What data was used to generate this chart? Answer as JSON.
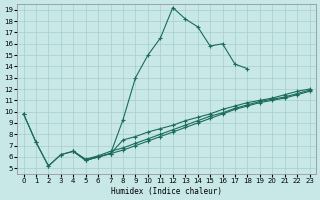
{
  "xlabel": "Humidex (Indice chaleur)",
  "bg_color": "#c8e8e8",
  "grid_color": "#a8cccc",
  "line_color": "#1a6b5a",
  "xlim": [
    -0.5,
    23.5
  ],
  "ylim": [
    4.5,
    19.5
  ],
  "xticks": [
    0,
    1,
    2,
    3,
    4,
    5,
    6,
    7,
    8,
    9,
    10,
    11,
    12,
    13,
    14,
    15,
    16,
    17,
    18,
    19,
    20,
    21,
    22,
    23
  ],
  "yticks": [
    5,
    6,
    7,
    8,
    9,
    10,
    11,
    12,
    13,
    14,
    15,
    16,
    17,
    18,
    19
  ],
  "line1_x": [
    0,
    1,
    2,
    3,
    4,
    5,
    6,
    7,
    8,
    9,
    10,
    11,
    12,
    13,
    14,
    15,
    16,
    17,
    18
  ],
  "line1_y": [
    9.8,
    7.3,
    5.2,
    6.2,
    6.5,
    5.7,
    6.0,
    6.3,
    9.3,
    13.0,
    15.0,
    16.5,
    19.2,
    18.2,
    17.5,
    15.8,
    16.0,
    14.2,
    13.8
  ],
  "line2_x": [
    0,
    1,
    2,
    3,
    4,
    5,
    6,
    7,
    8,
    9,
    10,
    11,
    12,
    13,
    14,
    15,
    16,
    17,
    18,
    19,
    20,
    21,
    22,
    23
  ],
  "line2_y": [
    9.8,
    7.3,
    5.2,
    6.2,
    6.5,
    5.7,
    6.0,
    6.3,
    7.5,
    7.8,
    8.2,
    8.5,
    8.8,
    9.2,
    9.5,
    9.8,
    10.2,
    10.5,
    10.8,
    11.0,
    11.2,
    11.5,
    11.8,
    12.0
  ],
  "line3_x": [
    4,
    5,
    6,
    7,
    8,
    9,
    10,
    11,
    12,
    13,
    14,
    15,
    16,
    17,
    18,
    19,
    20,
    21,
    22,
    23
  ],
  "line3_y": [
    6.5,
    5.7,
    6.0,
    6.3,
    6.6,
    7.0,
    7.4,
    7.8,
    8.2,
    8.6,
    9.0,
    9.4,
    9.8,
    10.2,
    10.5,
    10.8,
    11.0,
    11.2,
    11.5,
    11.8
  ],
  "line4_x": [
    4,
    5,
    6,
    7,
    8,
    9,
    10,
    11,
    12,
    13,
    14,
    15,
    16,
    17,
    18,
    19,
    20,
    21,
    22,
    23
  ],
  "line4_y": [
    6.5,
    5.8,
    6.1,
    6.5,
    6.8,
    7.2,
    7.6,
    8.0,
    8.4,
    8.8,
    9.2,
    9.6,
    9.9,
    10.3,
    10.6,
    10.9,
    11.1,
    11.3,
    11.6,
    11.9
  ]
}
